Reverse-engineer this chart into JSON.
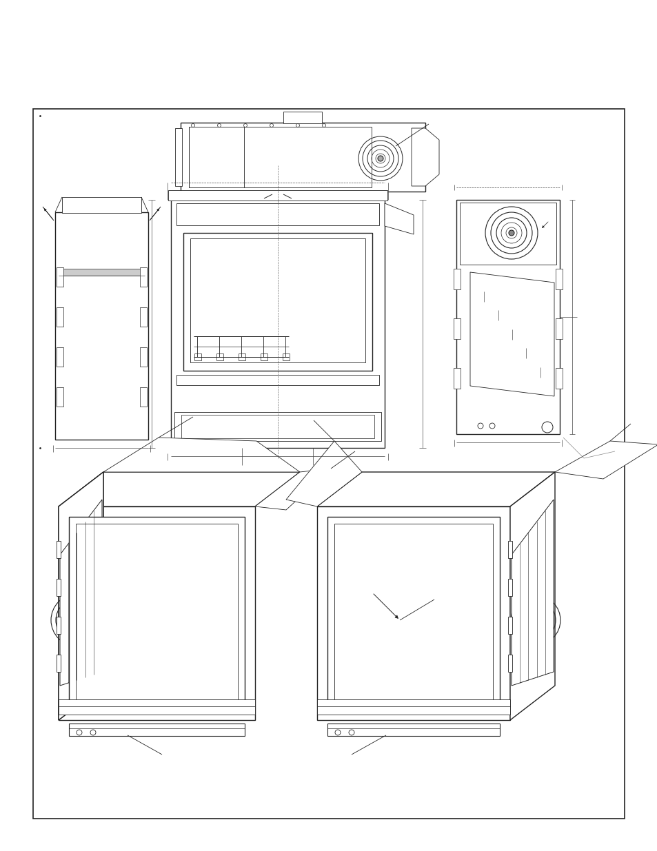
{
  "background_color": "#ffffff",
  "line_color": "#222222",
  "figure_width": 9.54,
  "figure_height": 12.35,
  "dpi": 100,
  "lw": 0.6,
  "tlw": 1.0,
  "dlw": 0.5
}
